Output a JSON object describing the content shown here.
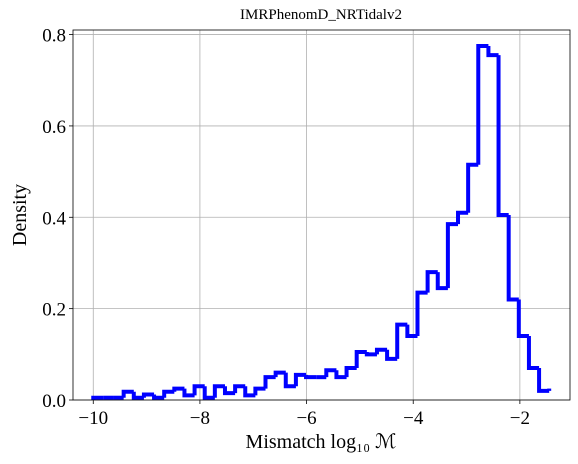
{
  "chart_data": {
    "type": "histogram",
    "title": "IMRPhenomD_NRTidalv2",
    "xlabel": "Mismatch log₁₀ ℳ",
    "ylabel": "Density",
    "bins": [
      -10,
      -9.81,
      -9.62,
      -9.43,
      -9.24,
      -9.05,
      -8.86,
      -8.67,
      -8.48,
      -8.29,
      -8.1,
      -7.91,
      -7.72,
      -7.53,
      -7.34,
      -7.15,
      -6.96,
      -6.77,
      -6.58,
      -6.39,
      -6.2,
      -6.01,
      -5.82,
      -5.63,
      -5.44,
      -5.25,
      -5.06,
      -4.87,
      -4.68,
      -4.49,
      -4.3,
      -4.11,
      -3.92,
      -3.73,
      -3.54,
      -3.35,
      -3.16,
      -2.97,
      -2.78,
      -2.59,
      -2.4,
      -2.21,
      -2.02,
      -1.83,
      -1.64,
      -1.45
    ],
    "values": [
      0.005,
      0.005,
      0.005,
      0.018,
      0.005,
      0.012,
      0.005,
      0.018,
      0.025,
      0.01,
      0.03,
      0.005,
      0.03,
      0.015,
      0.03,
      0.01,
      0.025,
      0.05,
      0.06,
      0.03,
      0.055,
      0.05,
      0.05,
      0.065,
      0.05,
      0.07,
      0.105,
      0.1,
      0.11,
      0.09,
      0.165,
      0.14,
      0.235,
      0.28,
      0.245,
      0.385,
      0.41,
      0.515,
      0.775,
      0.755,
      0.405,
      0.22,
      0.14,
      0.07,
      0.02,
      0.025
    ],
    "color": "#0000ff",
    "xlim": [
      -10.38,
      -1.06
    ],
    "ylim": [
      0,
      0.81
    ],
    "xticks": [
      {
        "value": -10,
        "label": "−10"
      },
      {
        "value": -8,
        "label": "−8"
      },
      {
        "value": -6,
        "label": "−6"
      },
      {
        "value": -4,
        "label": "−4"
      },
      {
        "value": -2,
        "label": "−2"
      }
    ],
    "yticks": [
      {
        "value": 0,
        "label": "0.0"
      },
      0.2,
      0.4,
      0.6,
      0.8
    ],
    "grid": true
  }
}
